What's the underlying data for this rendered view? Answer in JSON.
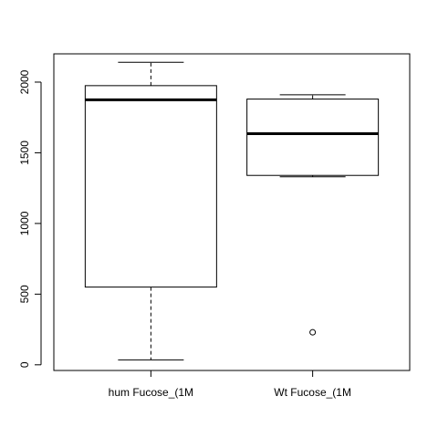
{
  "chart_data": {
    "type": "boxplot",
    "title": "",
    "xlabel": "",
    "ylabel": "",
    "ylim": [
      -40,
      2200
    ],
    "yticks": [
      0,
      500,
      1000,
      1500,
      2000
    ],
    "ytick_labels": [
      "0",
      "500",
      "1000",
      "1500",
      "2000"
    ],
    "grid": false,
    "categories": [
      "hum Fucose_(1M",
      "Wt Fucose_(1M"
    ],
    "boxes": [
      {
        "category": "hum Fucose_(1M",
        "whisker_low": 35,
        "q1": 550,
        "median": 1875,
        "q3": 1975,
        "whisker_high": 2140,
        "outliers": []
      },
      {
        "category": "Wt Fucose_(1M",
        "whisker_low": 1330,
        "q1": 1340,
        "median": 1635,
        "q3": 1880,
        "whisker_high": 1910,
        "outliers": [
          230
        ]
      }
    ]
  }
}
